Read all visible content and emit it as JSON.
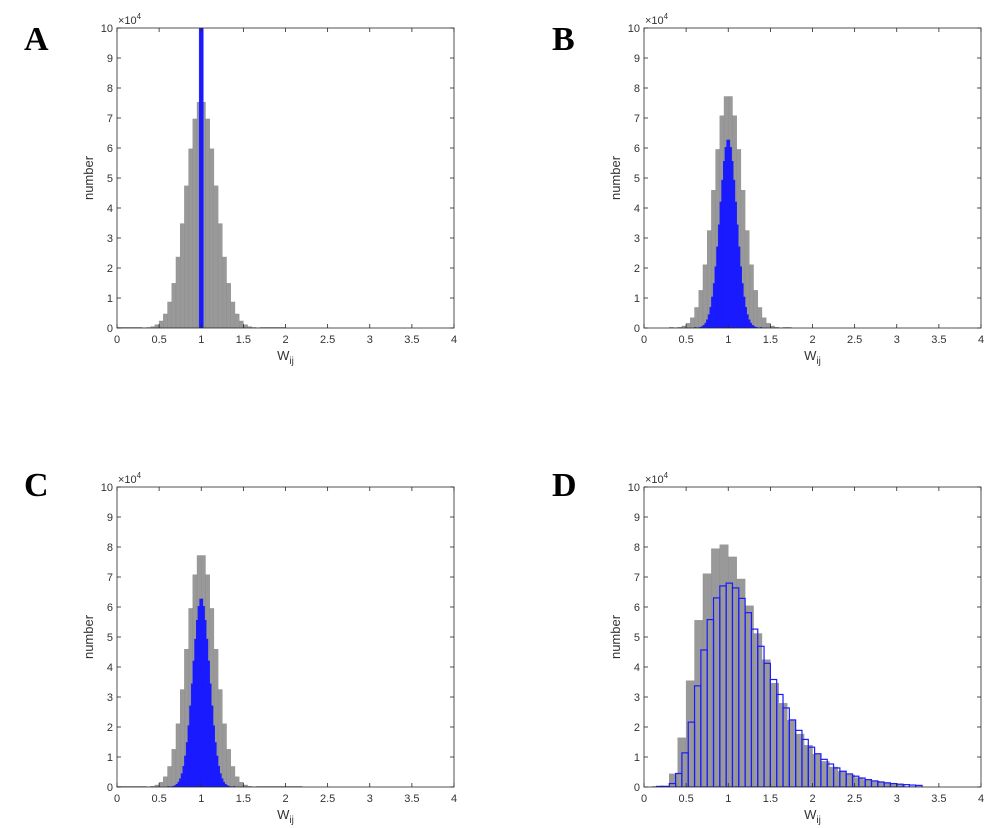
{
  "chart_data": [
    {
      "panel": "A",
      "type": "bar",
      "xlabel": "W",
      "xlabel_sub": "ij",
      "ylabel": "number",
      "y_multiplier": "×10",
      "y_multiplier_exp": "4",
      "xlim": [
        0,
        4
      ],
      "ylim": [
        0,
        10
      ],
      "xticks": [
        "0",
        "0.5",
        "1",
        "1.5",
        "2",
        "2.5",
        "3",
        "3.5",
        "4"
      ],
      "yticks": [
        "0",
        "1",
        "2",
        "3",
        "4",
        "5",
        "6",
        "7",
        "8",
        "9",
        "10"
      ],
      "grid": false,
      "series": [
        {
          "style": "filled",
          "color": "#999999",
          "dist": "gauss",
          "mean": 1.0,
          "sd": 0.18,
          "peak": 7.6,
          "range": [
            0.0,
            2.0
          ],
          "bin_width": 0.05
        },
        {
          "style": "filled",
          "color": "#1a1aff",
          "dist": "spike",
          "center": 1.0,
          "width": 0.05,
          "peak": 10.5
        }
      ]
    },
    {
      "panel": "B",
      "type": "bar",
      "xlabel": "W",
      "xlabel_sub": "ij",
      "ylabel": "number",
      "y_multiplier": "×10",
      "y_multiplier_exp": "4",
      "xlim": [
        0,
        4
      ],
      "ylim": [
        0,
        10
      ],
      "xticks": [
        "0",
        "0.5",
        "1",
        "1.5",
        "2",
        "2.5",
        "3",
        "3.5",
        "4"
      ],
      "yticks": [
        "0",
        "1",
        "2",
        "3",
        "4",
        "5",
        "6",
        "7",
        "8",
        "9",
        "10"
      ],
      "grid": false,
      "series": [
        {
          "style": "filled",
          "color": "#999999",
          "dist": "gauss",
          "mean": 1.0,
          "sd": 0.17,
          "peak": 7.8,
          "range": [
            0.3,
            1.75
          ],
          "bin_width": 0.05
        },
        {
          "style": "filled",
          "color": "#1a1aff",
          "dist": "gauss",
          "mean": 1.0,
          "sd": 0.1,
          "peak": 6.3,
          "range": [
            0.6,
            1.4
          ],
          "bin_width": 0.02
        }
      ]
    },
    {
      "panel": "C",
      "type": "bar",
      "xlabel": "W",
      "xlabel_sub": "ij",
      "ylabel": "number",
      "y_multiplier": "×10",
      "y_multiplier_exp": "4",
      "xlim": [
        0,
        4
      ],
      "ylim": [
        0,
        10
      ],
      "xticks": [
        "0",
        "0.5",
        "1",
        "1.5",
        "2",
        "2.5",
        "3",
        "3.5",
        "4"
      ],
      "yticks": [
        "0",
        "1",
        "2",
        "3",
        "4",
        "5",
        "6",
        "7",
        "8",
        "9",
        "10"
      ],
      "grid": false,
      "series": [
        {
          "style": "filled",
          "color": "#999999",
          "dist": "gauss",
          "mean": 1.0,
          "sd": 0.17,
          "peak": 7.8,
          "range": [
            0.0,
            2.2
          ],
          "bin_width": 0.05
        },
        {
          "style": "filled",
          "color": "#1a1aff",
          "dist": "gauss",
          "mean": 1.0,
          "sd": 0.1,
          "peak": 6.3,
          "range": [
            0.6,
            1.4
          ],
          "bin_width": 0.02
        }
      ]
    },
    {
      "panel": "D",
      "type": "bar",
      "xlabel": "W",
      "xlabel_sub": "ij",
      "ylabel": "number",
      "y_multiplier": "×10",
      "y_multiplier_exp": "4",
      "xlim": [
        0,
        4
      ],
      "ylim": [
        0,
        10
      ],
      "xticks": [
        "0",
        "0.5",
        "1",
        "1.5",
        "2",
        "2.5",
        "3",
        "3.5",
        "4"
      ],
      "yticks": [
        "0",
        "1",
        "2",
        "3",
        "4",
        "5",
        "6",
        "7",
        "8",
        "9",
        "10"
      ],
      "grid": false,
      "series": [
        {
          "style": "filled",
          "color": "#999999",
          "dist": "lognorm",
          "mode": 0.92,
          "sigma": 0.4,
          "peak": 8.1,
          "range": [
            0.1,
            3.1
          ],
          "bin_width": 0.1
        },
        {
          "style": "outline",
          "color": "#1a1aff",
          "dist": "lognorm",
          "mode": 1.0,
          "sigma": 0.38,
          "peak": 6.8,
          "range": [
            0.15,
            3.3
          ],
          "bin_width": 0.075
        }
      ]
    }
  ]
}
